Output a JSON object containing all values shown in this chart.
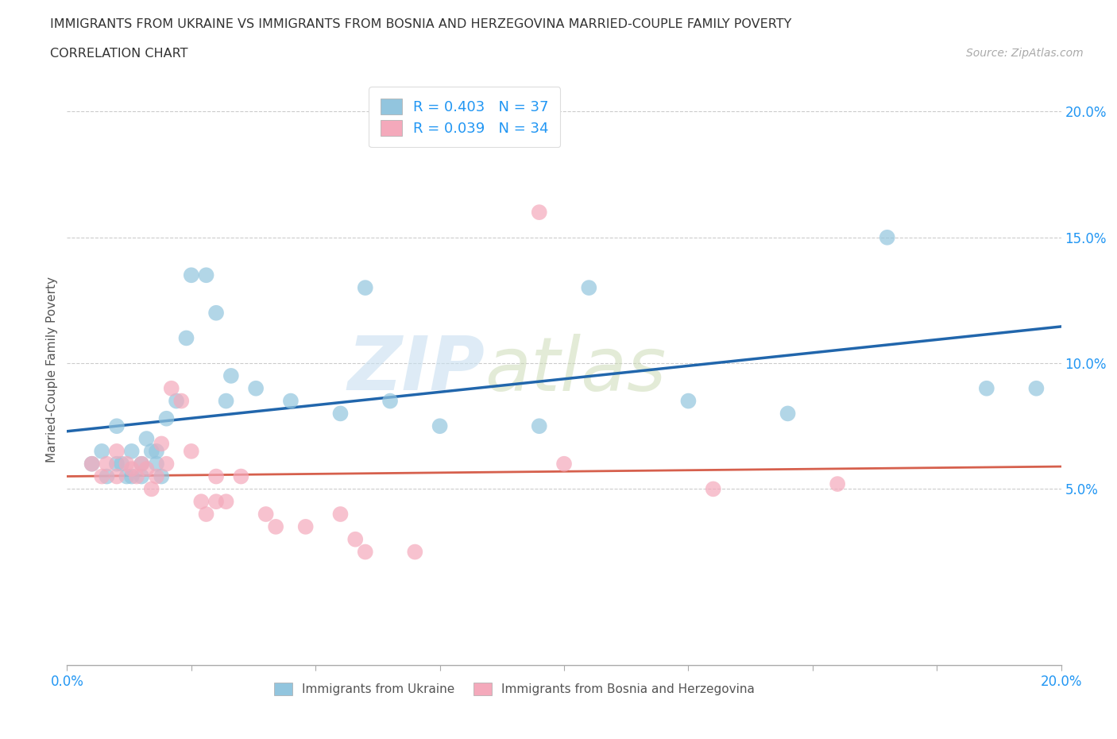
{
  "title_line1": "IMMIGRANTS FROM UKRAINE VS IMMIGRANTS FROM BOSNIA AND HERZEGOVINA MARRIED-COUPLE FAMILY POVERTY",
  "title_line2": "CORRELATION CHART",
  "source": "Source: ZipAtlas.com",
  "ylabel": "Married-Couple Family Poverty",
  "xlim": [
    0.0,
    0.2
  ],
  "ylim": [
    -0.02,
    0.215
  ],
  "yticks": [
    0.05,
    0.1,
    0.15,
    0.2
  ],
  "xticks": [
    0.0,
    0.025,
    0.05,
    0.075,
    0.1,
    0.125,
    0.15,
    0.175,
    0.2
  ],
  "ukraine_color": "#92c5de",
  "bosnia_color": "#f4a9bb",
  "ukraine_line_color": "#2166ac",
  "bosnia_line_color": "#d6604d",
  "ukraine_R": 0.403,
  "ukraine_N": 37,
  "bosnia_R": 0.039,
  "bosnia_N": 34,
  "watermark_left": "ZIP",
  "watermark_right": "atlas",
  "ukraine_x": [
    0.005,
    0.007,
    0.008,
    0.01,
    0.01,
    0.011,
    0.012,
    0.013,
    0.013,
    0.015,
    0.015,
    0.016,
    0.017,
    0.018,
    0.018,
    0.019,
    0.02,
    0.022,
    0.024,
    0.025,
    0.028,
    0.03,
    0.032,
    0.033,
    0.038,
    0.045,
    0.055,
    0.06,
    0.065,
    0.075,
    0.095,
    0.105,
    0.125,
    0.145,
    0.165,
    0.185,
    0.195
  ],
  "ukraine_y": [
    0.06,
    0.065,
    0.055,
    0.06,
    0.075,
    0.06,
    0.055,
    0.055,
    0.065,
    0.055,
    0.06,
    0.07,
    0.065,
    0.065,
    0.06,
    0.055,
    0.078,
    0.085,
    0.11,
    0.135,
    0.135,
    0.12,
    0.085,
    0.095,
    0.09,
    0.085,
    0.08,
    0.13,
    0.085,
    0.075,
    0.075,
    0.13,
    0.085,
    0.08,
    0.15,
    0.09,
    0.09
  ],
  "bosnia_x": [
    0.005,
    0.007,
    0.008,
    0.01,
    0.01,
    0.012,
    0.013,
    0.014,
    0.015,
    0.016,
    0.017,
    0.018,
    0.019,
    0.02,
    0.021,
    0.023,
    0.025,
    0.027,
    0.028,
    0.03,
    0.03,
    0.032,
    0.035,
    0.04,
    0.042,
    0.048,
    0.055,
    0.058,
    0.06,
    0.07,
    0.095,
    0.1,
    0.13,
    0.155
  ],
  "bosnia_y": [
    0.06,
    0.055,
    0.06,
    0.055,
    0.065,
    0.06,
    0.058,
    0.055,
    0.06,
    0.058,
    0.05,
    0.055,
    0.068,
    0.06,
    0.09,
    0.085,
    0.065,
    0.045,
    0.04,
    0.045,
    0.055,
    0.045,
    0.055,
    0.04,
    0.035,
    0.035,
    0.04,
    0.03,
    0.025,
    0.025,
    0.16,
    0.06,
    0.05,
    0.052
  ]
}
